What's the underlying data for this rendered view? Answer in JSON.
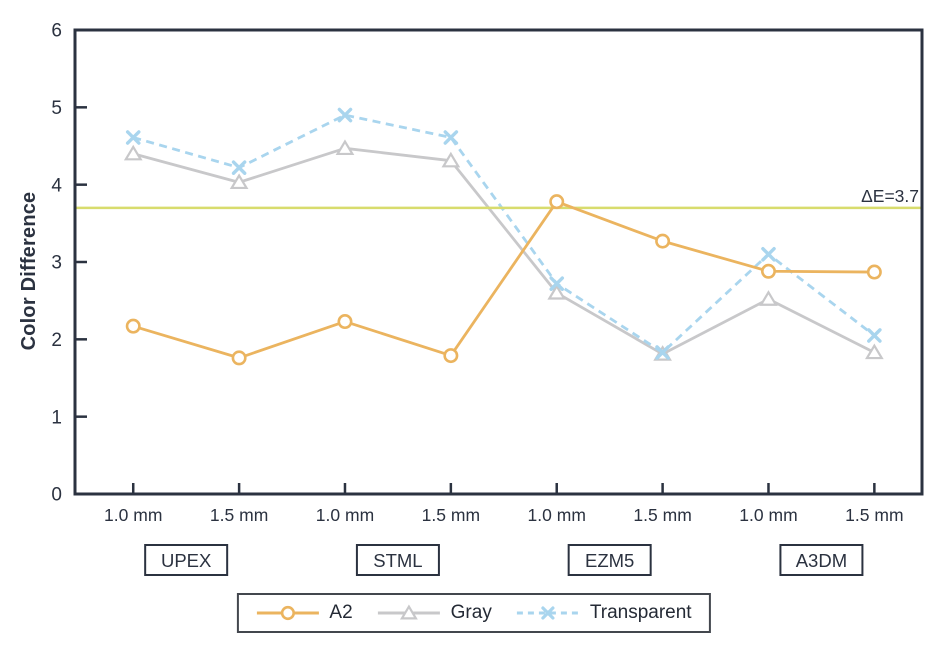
{
  "chart_data": {
    "type": "line",
    "title": "",
    "ylabel": "Color Difference",
    "xlabel": "",
    "ylim": [
      0,
      6
    ],
    "yticks": [
      0,
      1,
      2,
      3,
      4,
      5,
      6
    ],
    "grid": false,
    "legend_position": "bottom",
    "categories": [
      "1.0 mm",
      "1.5 mm",
      "1.0 mm",
      "1.5 mm",
      "1.0 mm",
      "1.5 mm",
      "1.0 mm",
      "1.5 mm"
    ],
    "groups": [
      "UPEX",
      "STML",
      "EZM5",
      "A3DM"
    ],
    "series": [
      {
        "name": "A2",
        "color": "#ebb45f",
        "marker": "circle",
        "dash": "solid",
        "values": [
          2.17,
          1.76,
          2.23,
          1.79,
          3.78,
          3.27,
          2.88,
          2.87
        ]
      },
      {
        "name": "Gray",
        "color": "#c8c8ca",
        "marker": "triangle",
        "dash": "solid",
        "values": [
          4.4,
          4.03,
          4.47,
          4.31,
          2.6,
          1.81,
          2.52,
          1.83
        ]
      },
      {
        "name": "Transparent",
        "color": "#a9d5ee",
        "marker": "x",
        "dash": "dashed",
        "values": [
          4.61,
          4.22,
          4.9,
          4.61,
          2.72,
          1.83,
          3.1,
          2.05
        ]
      }
    ],
    "reference_line": {
      "value": 3.7,
      "label": "ΔE=3.7",
      "color": "#d8dc6d"
    },
    "axis_color": "#2b3240"
  }
}
